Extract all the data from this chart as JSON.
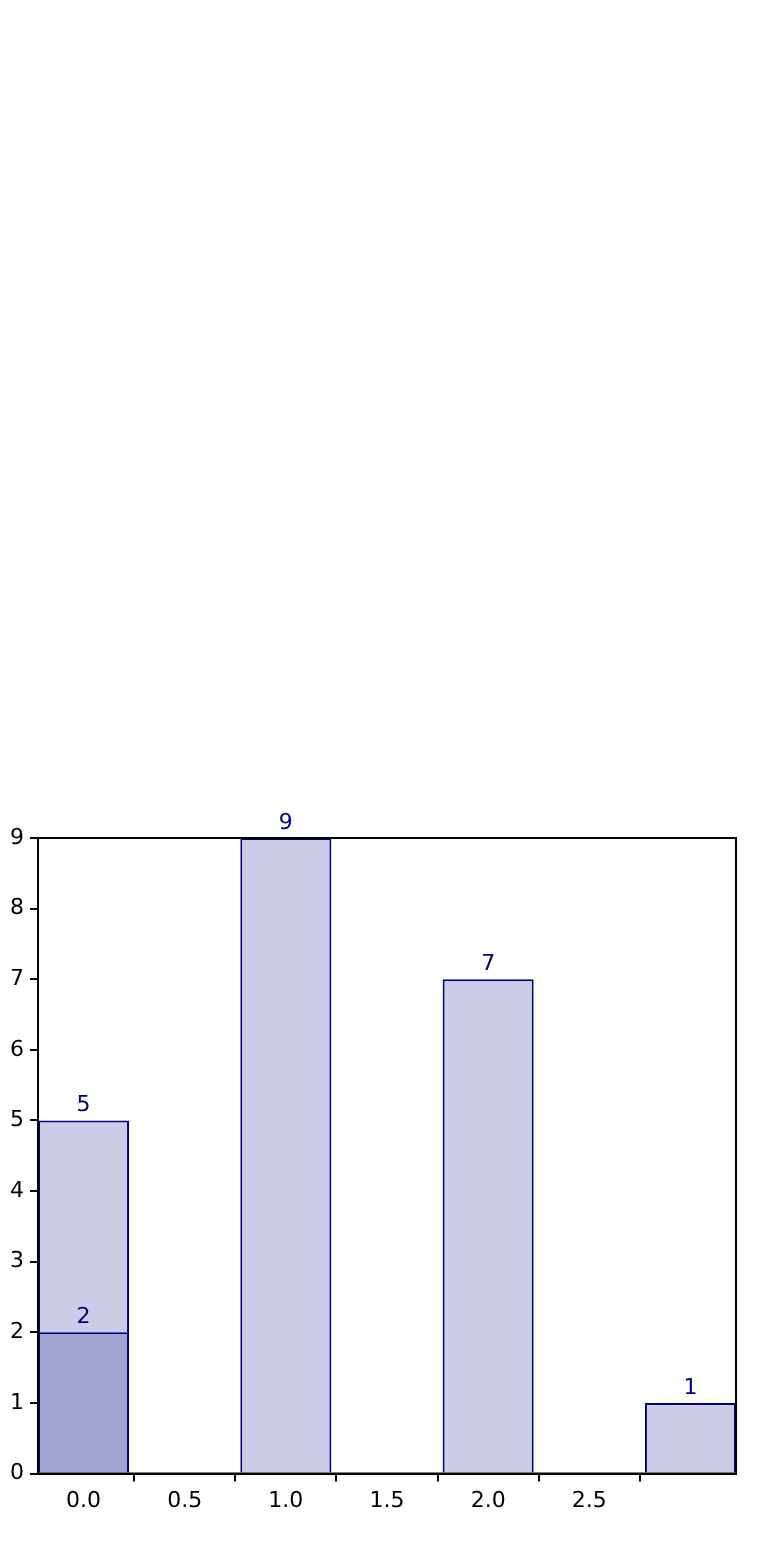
{
  "chart_data": {
    "type": "bar",
    "x": [
      0,
      1,
      2,
      3
    ],
    "series": [
      {
        "color": "#cccce6",
        "values": [
          5,
          9,
          7,
          1
        ]
      },
      {
        "color": "#a3a3d1",
        "values": [
          2,
          null,
          null,
          null
        ]
      }
    ],
    "xlim": [
      -0.225,
      3.225
    ],
    "xticks": [
      {
        "value": 0,
        "label": "0.0"
      },
      {
        "value": 0.5,
        "label": "0.5"
      },
      {
        "value": 1,
        "label": "1.0"
      },
      {
        "value": 1.5,
        "label": "1.5"
      },
      {
        "value": 2,
        "label": "2.0"
      },
      {
        "value": 2.5,
        "label": "2.5"
      }
    ],
    "ylim": [
      0,
      9
    ],
    "yticks": [
      0,
      1,
      2,
      3,
      4,
      5,
      6,
      7,
      8,
      9
    ],
    "data_labels": true,
    "grid": false,
    "legend": false
  }
}
